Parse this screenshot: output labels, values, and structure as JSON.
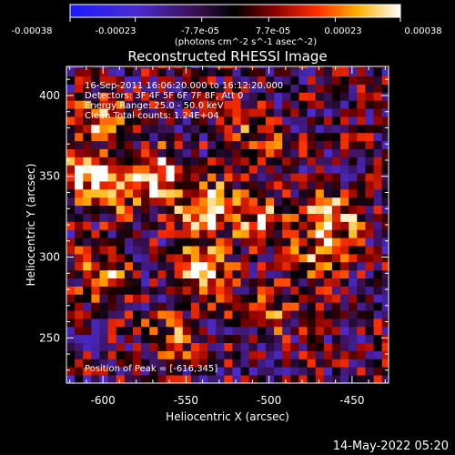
{
  "chart_data": {
    "type": "heatmap",
    "title": "Reconstructed RHESSI Image",
    "xlabel": "Heliocentric X (arcsec)",
    "ylabel": "Heliocentric Y (arcsec)",
    "xlim": [
      -622,
      -428
    ],
    "ylim": [
      222,
      418
    ],
    "x_ticks": [
      -600,
      -550,
      -500,
      -450
    ],
    "y_ticks": [
      250,
      300,
      350,
      400
    ],
    "grid": false,
    "colorbar": {
      "colormap": "hot-with-blue-negatives",
      "range": [
        -0.00038,
        0.00038
      ],
      "tick_values": [
        -0.00038,
        -0.00023,
        -7.7e-05,
        7.7e-05,
        0.00023,
        0.00038
      ],
      "tick_labels": [
        "-0.00038",
        "-0.00023",
        "-7.7e-05",
        "7.7e-05",
        "0.00023",
        "0.00038"
      ],
      "units_label": "(photons cm^-2 s^-1 asec^-2)"
    },
    "annotations": [
      "16-Sep-2011 16:06:20.000 to 16:12:20.000",
      "Detectors: 3F 4F 5F 6F 7F 8F, Att 0",
      "Energy Range: 25.0 - 50.0 keV",
      "Clean     Total counts: 1.24E+04"
    ],
    "peak_label": "Position of Peak = [-616,345]",
    "peak": [
      -616,
      345
    ],
    "bright_regions": [
      {
        "x": -538,
        "y": 330,
        "intensity": 0.00038
      },
      {
        "x": -565,
        "y": 350,
        "intensity": 0.0003
      },
      {
        "x": -540,
        "y": 292,
        "intensity": 0.00032
      },
      {
        "x": -590,
        "y": 345,
        "intensity": 0.00028
      },
      {
        "x": -510,
        "y": 368,
        "intensity": 0.00024
      },
      {
        "x": -462,
        "y": 325,
        "intensity": 0.00036
      },
      {
        "x": -505,
        "y": 325,
        "intensity": 0.00026
      },
      {
        "x": -600,
        "y": 385,
        "intensity": 0.00022
      },
      {
        "x": -600,
        "y": 290,
        "intensity": 0.00025
      },
      {
        "x": -560,
        "y": 250,
        "intensity": 0.00018
      },
      {
        "x": -500,
        "y": 265,
        "intensity": 0.00015
      },
      {
        "x": -470,
        "y": 300,
        "intensity": 0.0002
      },
      {
        "x": -610,
        "y": 350,
        "intensity": 0.00028
      }
    ],
    "timestamp": "14-May-2022 05:20"
  }
}
